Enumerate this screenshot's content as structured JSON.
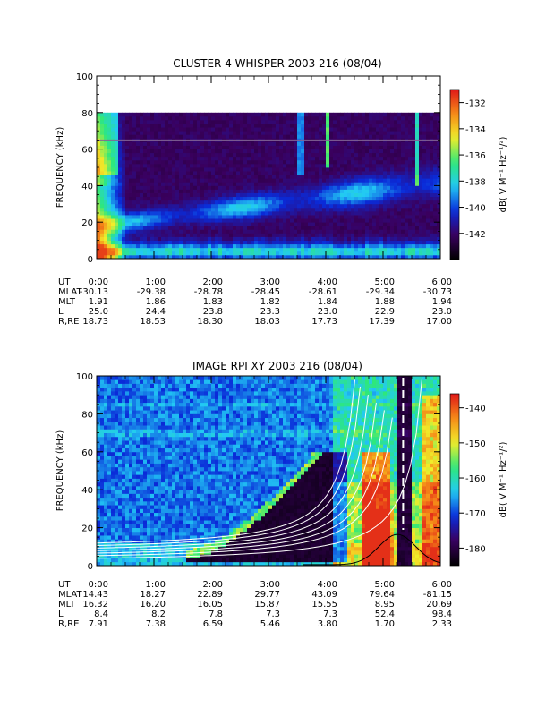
{
  "chart_data": [
    {
      "type": "heatmap",
      "title": "CLUSTER 4 WHISPER 2003 216 (08/04)",
      "ylabel": "FREQUENCY (kHz)",
      "ylim": [
        0,
        100
      ],
      "yticks": [
        "0",
        "20",
        "40",
        "60",
        "80",
        "100"
      ],
      "xticks": [
        "0:00",
        "1:00",
        "2:00",
        "3:00",
        "4:00",
        "5:00",
        "6:00"
      ],
      "xlim_hours": [
        0,
        6
      ],
      "data_max_khz": 80,
      "colorbar": {
        "label": "dB( V M⁻¹ Hz⁻¹/²)",
        "range": [
          -144,
          -131
        ],
        "ticks": [
          "-132",
          "-134",
          "-136",
          "-138",
          "-140",
          "-142"
        ],
        "tick_values": [
          -132,
          -134,
          -136,
          -138,
          -140,
          -142
        ]
      },
      "ephemeris": {
        "row_labels": [
          "UT",
          "MLAT",
          "MLT",
          "L",
          "R,RE"
        ],
        "ut": [
          "0:00",
          "1:00",
          "2:00",
          "3:00",
          "4:00",
          "5:00",
          "6:00"
        ],
        "mlat": [
          "-30.13",
          "-29.38",
          "-28.78",
          "-28.45",
          "-28.61",
          "-29.34",
          "-30.73"
        ],
        "mlt": [
          "1.91",
          "1.86",
          "1.83",
          "1.82",
          "1.84",
          "1.88",
          "1.94"
        ],
        "l": [
          "25.0",
          "24.4",
          "23.8",
          "23.3",
          "23.0",
          "22.9",
          "23.0"
        ],
        "rre": [
          "18.73",
          "18.53",
          "18.30",
          "18.03",
          "17.73",
          "17.39",
          "17.00"
        ]
      },
      "colors": {
        "black": "#000000",
        "purple": "#3a005e",
        "blue": "#0a2bd9",
        "cyan": "#22c9f5",
        "green": "#2ee87a",
        "yellow": "#f1ee2a",
        "orange": "#f58a18",
        "red": "#e01818"
      }
    },
    {
      "type": "heatmap",
      "title": "IMAGE RPI XY 2003 216 (08/04)",
      "ylabel": "FREQUENCY (kHz)",
      "ylim": [
        0,
        100
      ],
      "yticks": [
        "0",
        "20",
        "40",
        "60",
        "80",
        "100"
      ],
      "xticks": [
        "0:00",
        "1:00",
        "2:00",
        "3:00",
        "4:00",
        "5:00",
        "6:00"
      ],
      "xlim_hours": [
        0,
        6
      ],
      "colorbar": {
        "label": "dB( V M⁻¹ Hz⁻¹/²)",
        "range": [
          -185,
          -136
        ],
        "ticks": [
          "-140",
          "-150",
          "-160",
          "-170",
          "-180"
        ],
        "tick_values": [
          -140,
          -150,
          -160,
          -170,
          -180
        ]
      },
      "ephemeris": {
        "row_labels": [
          "UT",
          "MLAT",
          "MLT",
          "L",
          "R,RE"
        ],
        "ut": [
          "0:00",
          "1:00",
          "2:00",
          "3:00",
          "4:00",
          "5:00",
          "6:00"
        ],
        "mlat": [
          "14.43",
          "18.27",
          "22.89",
          "29.77",
          "43.09",
          "79.64",
          "-81.15"
        ],
        "mlt": [
          "16.32",
          "16.20",
          "16.05",
          "15.87",
          "15.55",
          "8.95",
          "20.69"
        ],
        "l": [
          "8.4",
          "8.2",
          "7.8",
          "7.3",
          "7.3",
          "52.4",
          "98.4"
        ],
        "rre": [
          "7.91",
          "7.38",
          "6.59",
          "5.46",
          "3.80",
          "1.70",
          "2.33"
        ]
      },
      "colors": {
        "black": "#000000",
        "purple": "#3a005e",
        "blue": "#0a2bd9",
        "cyan": "#22c9f5",
        "green": "#2ee87a",
        "yellow": "#f1ee2a",
        "orange": "#f58a18",
        "red": "#e01818"
      }
    }
  ]
}
